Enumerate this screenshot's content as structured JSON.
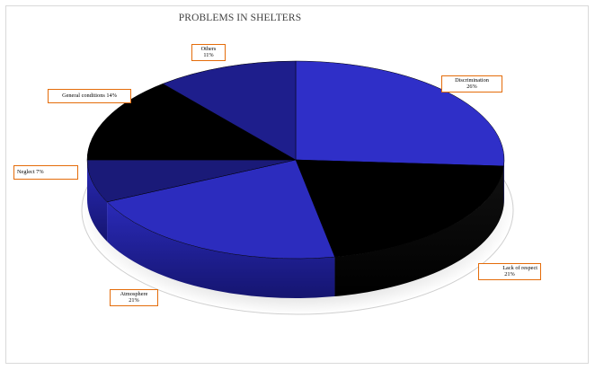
{
  "chart_data": {
    "type": "pie",
    "title": "PROBLEMS IN SHELTERS",
    "slices": [
      {
        "label": "Discrimination",
        "value": 26,
        "value_label": "26%",
        "color": "#2f2fc8"
      },
      {
        "label": "Lack of respect",
        "value": 21,
        "value_label": "21%",
        "color": "#000000"
      },
      {
        "label": "Atmosphere",
        "value": 21,
        "value_label": "21%",
        "color": "#2c2cbe"
      },
      {
        "label": "Neglect",
        "value": 7,
        "value_label": "7%",
        "color": "#1a1a78"
      },
      {
        "label": "General conditions",
        "value": 14,
        "value_label": "14%",
        "color": "#000000"
      },
      {
        "label": "Others",
        "value": 11,
        "value_label": "11%",
        "color": "#1e1e8c"
      }
    ],
    "style": "3d-pie",
    "label_border_color": "#e46c0a"
  }
}
